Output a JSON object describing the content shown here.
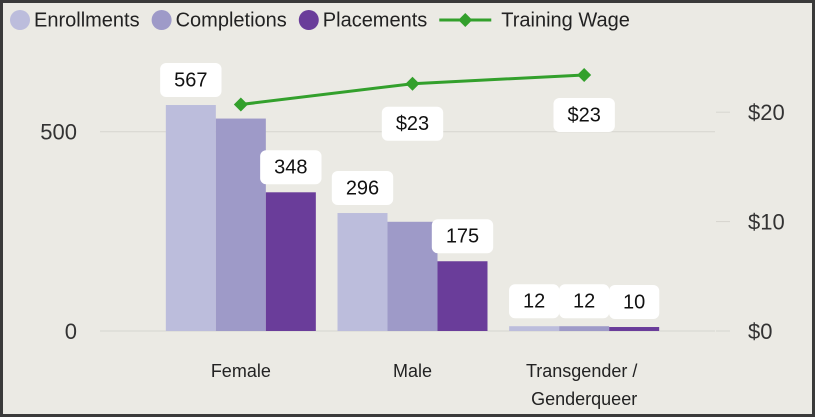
{
  "chart_data": {
    "type": "bar",
    "categories": [
      "Female",
      "Male",
      "Transgender / Genderqueer"
    ],
    "series": [
      {
        "name": "Enrollments",
        "color": "#bcbddc",
        "values": [
          567,
          296,
          12
        ],
        "value_labels": [
          "567",
          "296",
          "12"
        ]
      },
      {
        "name": "Completions",
        "color": "#9e9ac8",
        "values": [
          533,
          274,
          12
        ],
        "value_labels": [
          null,
          null,
          "12"
        ]
      },
      {
        "name": "Placements",
        "color": "#6a3d9a",
        "values": [
          348,
          175,
          10
        ],
        "value_labels": [
          "348",
          "175",
          "10"
        ]
      },
      {
        "name": "Training Wage",
        "type": "line",
        "axis": "y2",
        "color": "#33a02c",
        "values": [
          20.7,
          22.6,
          23.4
        ],
        "value_labels": [
          null,
          "$23",
          "$23"
        ]
      }
    ],
    "ylim": [
      0,
      700
    ],
    "yticks": [
      0,
      500
    ],
    "y2lim": [
      0,
      25.5
    ],
    "y2ticks": [
      {
        "value": 0,
        "label": "$0"
      },
      {
        "value": 10,
        "label": "$10"
      },
      {
        "value": 20,
        "label": "$20"
      }
    ],
    "grid": true
  }
}
